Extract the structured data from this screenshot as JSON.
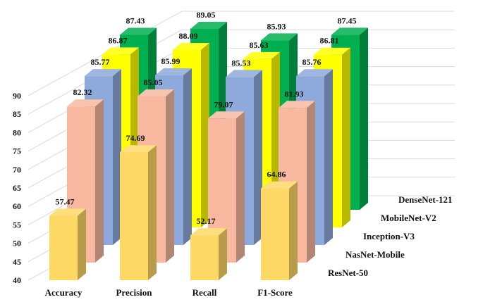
{
  "chart_data": {
    "type": "bar",
    "variant": "3d-clustered-depth",
    "categories": [
      "Accuracy",
      "Precision",
      "Recall",
      "F1-Score"
    ],
    "series": [
      {
        "name": "ResNet-50",
        "values": [
          57.47,
          74.69,
          52.17,
          64.86
        ],
        "color": "#FFD966"
      },
      {
        "name": "NasNet-Mobile",
        "values": [
          82.32,
          85.05,
          79.07,
          81.93
        ],
        "color": "#F8B9A0"
      },
      {
        "name": "Inception-V3",
        "values": [
          85.77,
          85.99,
          85.53,
          85.76
        ],
        "color": "#8EA9DB"
      },
      {
        "name": "MobileNet-V2",
        "values": [
          86.87,
          88.09,
          85.63,
          86.81
        ],
        "color": "#FFFF00"
      },
      {
        "name": "DenseNet-121",
        "values": [
          87.43,
          89.05,
          85.93,
          87.45
        ],
        "color": "#00B050"
      }
    ],
    "ylim": [
      40,
      90
    ],
    "yticks": [
      "40",
      "45",
      "50",
      "55",
      "60",
      "65",
      "70",
      "75",
      "80",
      "85",
      "90"
    ],
    "grid": true,
    "legend": "series labels along depth axis (right)"
  }
}
